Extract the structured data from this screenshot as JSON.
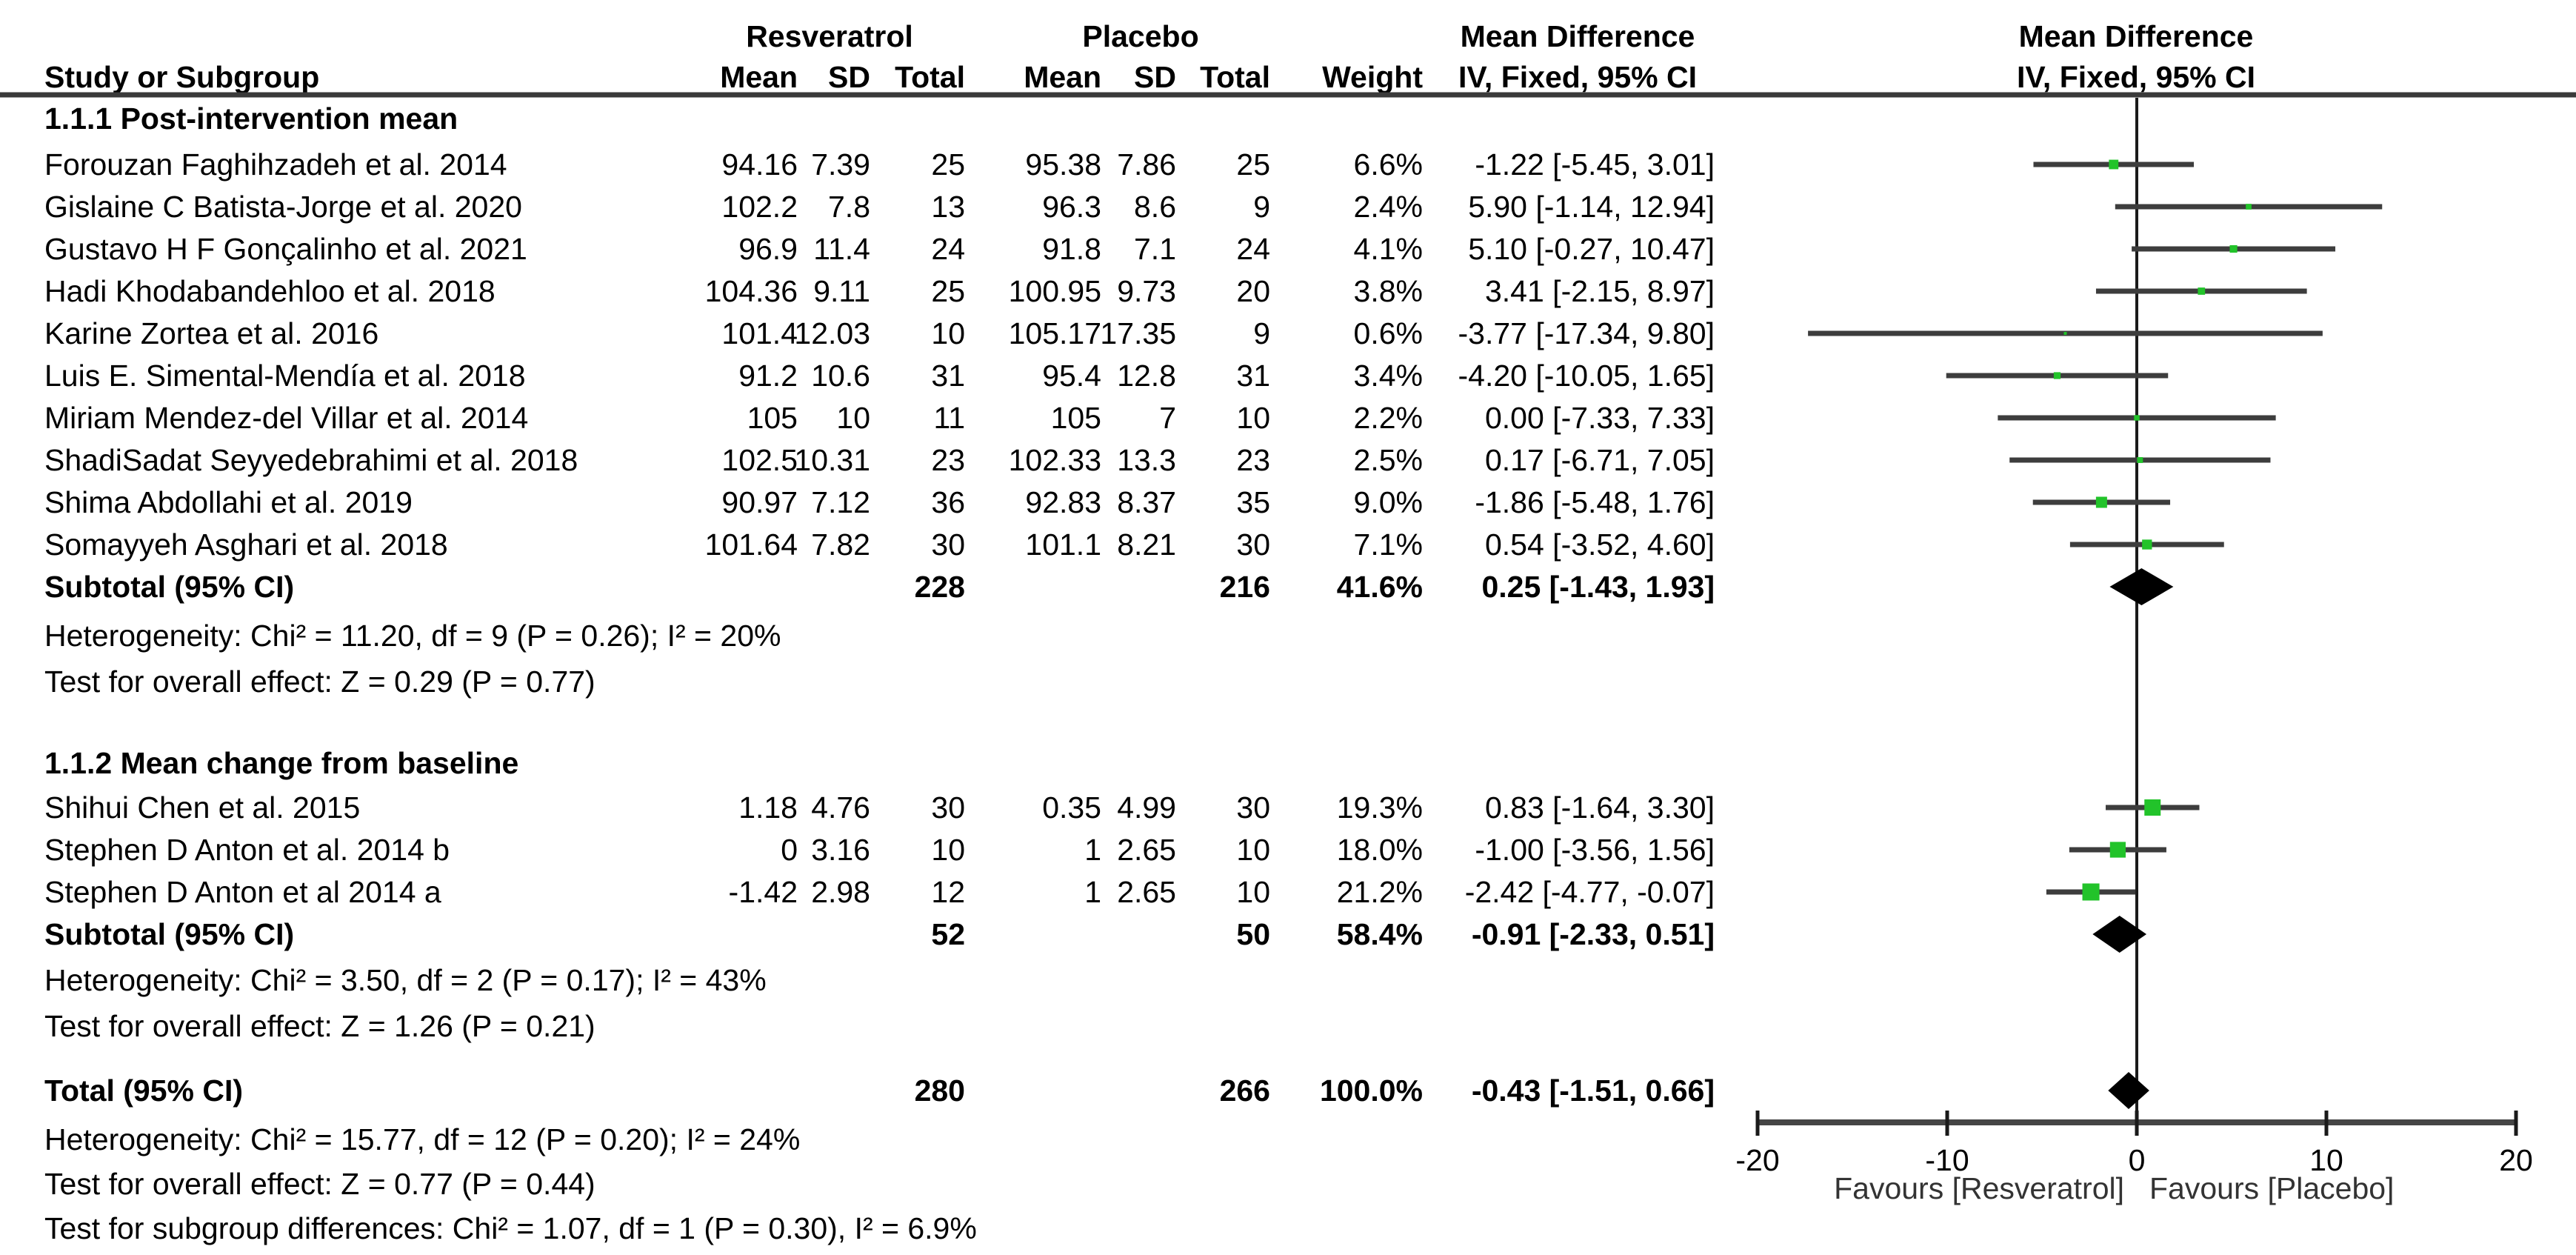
{
  "figure_title": "Forest plot: Resveratrol vs Placebo, Mean Difference IV Fixed 95% CI",
  "columns": {
    "study": "Study or Subgroup",
    "group1": "Resveratrol",
    "group2": "Placebo",
    "mean": "Mean",
    "sd": "SD",
    "total": "Total",
    "weight": "Weight",
    "effect_header": "Mean Difference",
    "method_header": "IV, Fixed, 95% CI"
  },
  "colors": {
    "text": "#000000",
    "marker_green": "#22c32a",
    "ci_line": "#3d3d3d",
    "axis": "#454545",
    "rule": "#3a3a3a",
    "zero_line": "#1a1a1a",
    "diamond": "#000000",
    "favours_text": "#333333"
  },
  "chart_data": {
    "type": "forest",
    "xlim": [
      -20,
      20
    ],
    "axis_ticks": [
      -20,
      -10,
      0,
      10,
      20
    ],
    "favours_left": "Favours [Resveratrol]",
    "favours_right": "Favours [Placebo]",
    "sections": [
      {
        "heading": "1.1.1 Post-intervention mean",
        "studies": [
          {
            "name": "Forouzan Faghihzadeh et al. 2014",
            "mean1": "94.16",
            "sd1": "7.39",
            "n1": "25",
            "mean2": "95.38",
            "sd2": "7.86",
            "n2": "25",
            "weight": "6.6%",
            "ci_text": "-1.22 [-5.45, 3.01]",
            "est": -1.22,
            "lo": -5.45,
            "hi": 3.01,
            "w": 6.6
          },
          {
            "name": "Gislaine C Batista-Jorge et al. 2020",
            "mean1": "102.2",
            "sd1": "7.8",
            "n1": "13",
            "mean2": "96.3",
            "sd2": "8.6",
            "n2": "9",
            "weight": "2.4%",
            "ci_text": "5.90 [-1.14, 12.94]",
            "est": 5.9,
            "lo": -1.14,
            "hi": 12.94,
            "w": 2.4
          },
          {
            "name": "Gustavo H F Gonçalinho et al. 2021",
            "mean1": "96.9",
            "sd1": "11.4",
            "n1": "24",
            "mean2": "91.8",
            "sd2": "7.1",
            "n2": "24",
            "weight": "4.1%",
            "ci_text": "5.10 [-0.27, 10.47]",
            "est": 5.1,
            "lo": -0.27,
            "hi": 10.47,
            "w": 4.1
          },
          {
            "name": "Hadi Khodabandehloo et al. 2018",
            "mean1": "104.36",
            "sd1": "9.11",
            "n1": "25",
            "mean2": "100.95",
            "sd2": "9.73",
            "n2": "20",
            "weight": "3.8%",
            "ci_text": "3.41 [-2.15, 8.97]",
            "est": 3.41,
            "lo": -2.15,
            "hi": 8.97,
            "w": 3.8
          },
          {
            "name": "Karine Zortea et al. 2016",
            "mean1": "101.4",
            "sd1": "12.03",
            "n1": "10",
            "mean2": "105.17",
            "sd2": "17.35",
            "n2": "9",
            "weight": "0.6%",
            "ci_text": "-3.77 [-17.34, 9.80]",
            "est": -3.77,
            "lo": -17.34,
            "hi": 9.8,
            "w": 0.6
          },
          {
            "name": "Luis E. Simental-Mendía et al. 2018",
            "mean1": "91.2",
            "sd1": "10.6",
            "n1": "31",
            "mean2": "95.4",
            "sd2": "12.8",
            "n2": "31",
            "weight": "3.4%",
            "ci_text": "-4.20 [-10.05, 1.65]",
            "est": -4.2,
            "lo": -10.05,
            "hi": 1.65,
            "w": 3.4
          },
          {
            "name": "Miriam Mendez-del Villar et al. 2014",
            "mean1": "105",
            "sd1": "10",
            "n1": "11",
            "mean2": "105",
            "sd2": "7",
            "n2": "10",
            "weight": "2.2%",
            "ci_text": "0.00 [-7.33, 7.33]",
            "est": 0.0,
            "lo": -7.33,
            "hi": 7.33,
            "w": 2.2
          },
          {
            "name": "ShadiSadat Seyyedebrahimi et al. 2018",
            "mean1": "102.5",
            "sd1": "10.31",
            "n1": "23",
            "mean2": "102.33",
            "sd2": "13.3",
            "n2": "23",
            "weight": "2.5%",
            "ci_text": "0.17 [-6.71, 7.05]",
            "est": 0.17,
            "lo": -6.71,
            "hi": 7.05,
            "w": 2.5
          },
          {
            "name": "Shima Abdollahi et al. 2019",
            "mean1": "90.97",
            "sd1": "7.12",
            "n1": "36",
            "mean2": "92.83",
            "sd2": "8.37",
            "n2": "35",
            "weight": "9.0%",
            "ci_text": "-1.86 [-5.48, 1.76]",
            "est": -1.86,
            "lo": -5.48,
            "hi": 1.76,
            "w": 9.0
          },
          {
            "name": "Somayyeh Asghari et al. 2018",
            "mean1": "101.64",
            "sd1": "7.82",
            "n1": "30",
            "mean2": "101.1",
            "sd2": "8.21",
            "n2": "30",
            "weight": "7.1%",
            "ci_text": "0.54 [-3.52, 4.60]",
            "est": 0.54,
            "lo": -3.52,
            "hi": 4.6,
            "w": 7.1
          }
        ],
        "subtotal": {
          "label": "Subtotal (95% CI)",
          "n1": "228",
          "n2": "216",
          "weight": "41.6%",
          "ci_text": "0.25 [-1.43, 1.93]",
          "est": 0.25,
          "lo": -1.43,
          "hi": 1.93
        },
        "heterogeneity": "Heterogeneity: Chi² = 11.20, df = 9 (P = 0.26); I² = 20%",
        "overall_effect": "Test for overall effect: Z = 0.29 (P = 0.77)"
      },
      {
        "heading": "1.1.2 Mean change from baseline",
        "studies": [
          {
            "name": "Shihui Chen et al. 2015",
            "mean1": "1.18",
            "sd1": "4.76",
            "n1": "30",
            "mean2": "0.35",
            "sd2": "4.99",
            "n2": "30",
            "weight": "19.3%",
            "ci_text": "0.83 [-1.64, 3.30]",
            "est": 0.83,
            "lo": -1.64,
            "hi": 3.3,
            "w": 19.3
          },
          {
            "name": "Stephen D Anton et al. 2014 b",
            "mean1": "0",
            "sd1": "3.16",
            "n1": "10",
            "mean2": "1",
            "sd2": "2.65",
            "n2": "10",
            "weight": "18.0%",
            "ci_text": "-1.00 [-3.56, 1.56]",
            "est": -1.0,
            "lo": -3.56,
            "hi": 1.56,
            "w": 18.0
          },
          {
            "name": "Stephen D Anton et al 2014 a",
            "mean1": "-1.42",
            "sd1": "2.98",
            "n1": "12",
            "mean2": "1",
            "sd2": "2.65",
            "n2": "10",
            "weight": "21.2%",
            "ci_text": "-2.42 [-4.77, -0.07]",
            "est": -2.42,
            "lo": -4.77,
            "hi": -0.07,
            "w": 21.2
          }
        ],
        "subtotal": {
          "label": "Subtotal (95% CI)",
          "n1": "52",
          "n2": "50",
          "weight": "58.4%",
          "ci_text": "-0.91 [-2.33, 0.51]",
          "est": -0.91,
          "lo": -2.33,
          "hi": 0.51
        },
        "heterogeneity": "Heterogeneity: Chi² = 3.50, df = 2 (P = 0.17); I² = 43%",
        "overall_effect": "Test for overall effect: Z = 1.26 (P = 0.21)"
      }
    ],
    "total": {
      "label": "Total (95% CI)",
      "n1": "280",
      "n2": "266",
      "weight": "100.0%",
      "ci_text": "-0.43 [-1.51, 0.66]",
      "est": -0.43,
      "lo": -1.51,
      "hi": 0.66
    },
    "total_heterogeneity": "Heterogeneity: Chi² = 15.77, df = 12 (P = 0.20); I² = 24%",
    "total_overall_effect": "Test for overall effect: Z = 0.77 (P = 0.44)",
    "subgroup_differences": "Test for subgroup differences: Chi² = 1.07, df = 1 (P = 0.30), I² = 6.9%"
  }
}
